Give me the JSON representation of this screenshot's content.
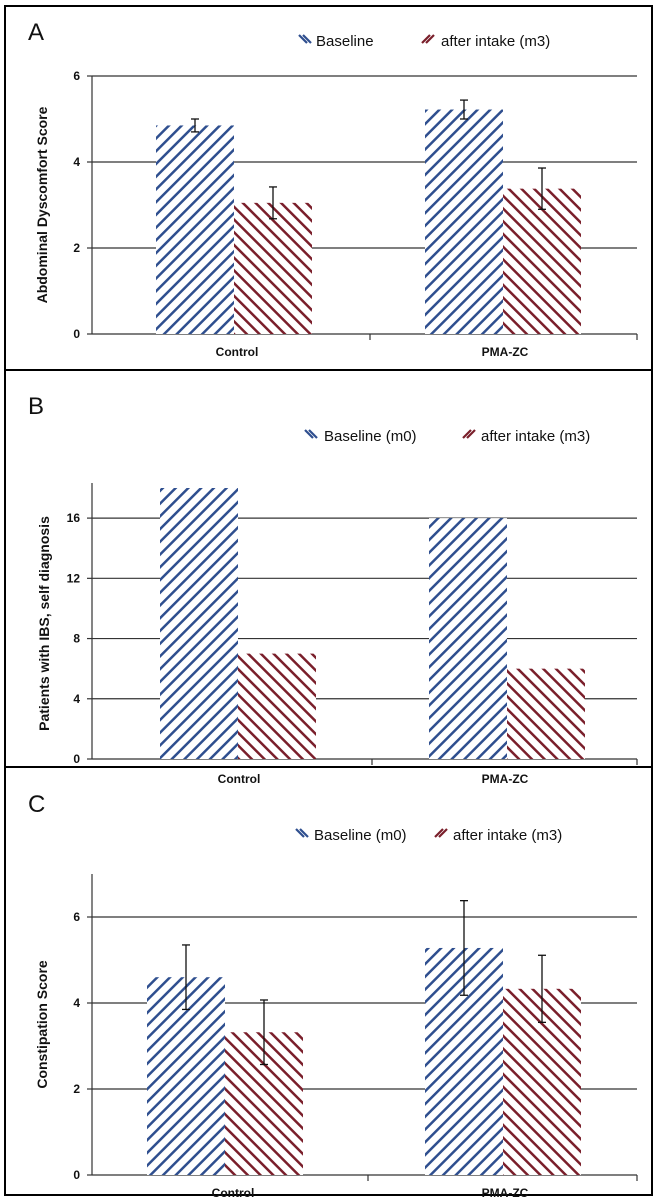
{
  "colors": {
    "baseline": "#2f4f8f",
    "after": "#7a1f2b",
    "grid": "#333333",
    "frame": "#000000"
  },
  "chart_data": [
    {
      "type": "bar",
      "panel": "A",
      "categories": [
        "Control",
        "PMA-ZC"
      ],
      "ylabel": "Abdominal Dyscomfort Score",
      "ylim": [
        0,
        6
      ],
      "yticks": [
        0,
        2,
        4,
        6
      ],
      "grid": true,
      "legend_position": "top-right",
      "series": [
        {
          "name": "Baseline",
          "values": [
            4.85,
            5.22
          ],
          "errors": [
            0.15,
            0.22
          ],
          "hatch": "back"
        },
        {
          "name": "after intake (m3)",
          "values": [
            3.05,
            3.38
          ],
          "errors": [
            0.37,
            0.48
          ],
          "hatch": "fwd"
        }
      ]
    },
    {
      "type": "bar",
      "panel": "B",
      "categories": [
        "Control",
        "PMA-ZC"
      ],
      "ylabel": "Patients with IBS, self diagnosis",
      "ylim": [
        0,
        18
      ],
      "yticks": [
        0,
        4,
        8,
        12,
        16
      ],
      "grid": true,
      "legend_position": "top-right",
      "series": [
        {
          "name": "Baseline (m0)",
          "values": [
            18,
            16
          ],
          "hatch": "back"
        },
        {
          "name": "after intake (m3)",
          "values": [
            7,
            6
          ],
          "hatch": "fwd"
        }
      ]
    },
    {
      "type": "bar",
      "panel": "C",
      "categories": [
        "Control",
        "PMA-ZC"
      ],
      "ylabel": "Constipation Score",
      "ylim": [
        0,
        7
      ],
      "yticks": [
        0,
        2,
        4,
        6
      ],
      "grid": true,
      "legend_position": "top-right",
      "series": [
        {
          "name": "Baseline (m0)",
          "values": [
            4.6,
            5.28
          ],
          "errors": [
            0.75,
            1.1
          ],
          "hatch": "back"
        },
        {
          "name": "after intake (m3)",
          "values": [
            3.32,
            4.33
          ],
          "errors": [
            0.75,
            0.78
          ],
          "hatch": "fwd"
        }
      ]
    }
  ]
}
